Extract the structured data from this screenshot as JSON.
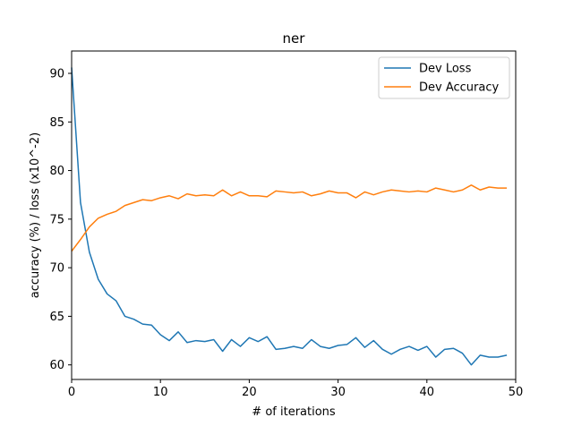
{
  "chart_data": {
    "type": "line",
    "title": "ner",
    "xlabel": "# of iterations",
    "ylabel": "accuracy (%) / loss (x10^-2)",
    "xlim": [
      0,
      50
    ],
    "ylim": [
      58.5,
      92.3
    ],
    "xticks": [
      0,
      10,
      20,
      30,
      40,
      50
    ],
    "yticks": [
      60,
      65,
      70,
      75,
      80,
      85,
      90
    ],
    "grid": false,
    "legend_position": "top-right",
    "x": [
      0,
      1,
      2,
      3,
      4,
      5,
      6,
      7,
      8,
      9,
      10,
      11,
      12,
      13,
      14,
      15,
      16,
      17,
      18,
      19,
      20,
      21,
      22,
      23,
      24,
      25,
      26,
      27,
      28,
      29,
      30,
      31,
      32,
      33,
      34,
      35,
      36,
      37,
      38,
      39,
      40,
      41,
      42,
      43,
      44,
      45,
      46,
      47,
      48,
      49
    ],
    "series": [
      {
        "name": "Dev Loss",
        "color": "#1f77b4",
        "values": [
          90.6,
          76.7,
          71.6,
          68.8,
          67.3,
          66.6,
          65.0,
          64.7,
          64.2,
          64.1,
          63.1,
          62.5,
          63.4,
          62.3,
          62.5,
          62.4,
          62.6,
          61.4,
          62.6,
          61.9,
          62.8,
          62.4,
          62.9,
          61.6,
          61.7,
          61.9,
          61.7,
          62.6,
          61.9,
          61.7,
          62.0,
          62.1,
          62.8,
          61.8,
          62.5,
          61.6,
          61.1,
          61.6,
          61.9,
          61.5,
          61.9,
          60.8,
          61.6,
          61.7,
          61.2,
          60.0,
          61.0,
          60.8,
          60.8,
          61.0
        ]
      },
      {
        "name": "Dev Accuracy",
        "color": "#ff7f0e",
        "values": [
          71.7,
          72.9,
          74.2,
          75.1,
          75.5,
          75.8,
          76.4,
          76.7,
          77.0,
          76.9,
          77.2,
          77.4,
          77.1,
          77.6,
          77.4,
          77.5,
          77.4,
          78.0,
          77.4,
          77.8,
          77.4,
          77.4,
          77.3,
          77.9,
          77.8,
          77.7,
          77.8,
          77.4,
          77.6,
          77.9,
          77.7,
          77.7,
          77.2,
          77.8,
          77.5,
          77.8,
          78.0,
          77.9,
          77.8,
          77.9,
          77.8,
          78.2,
          78.0,
          77.8,
          78.0,
          78.5,
          78.0,
          78.3,
          78.2,
          78.2
        ]
      }
    ]
  }
}
